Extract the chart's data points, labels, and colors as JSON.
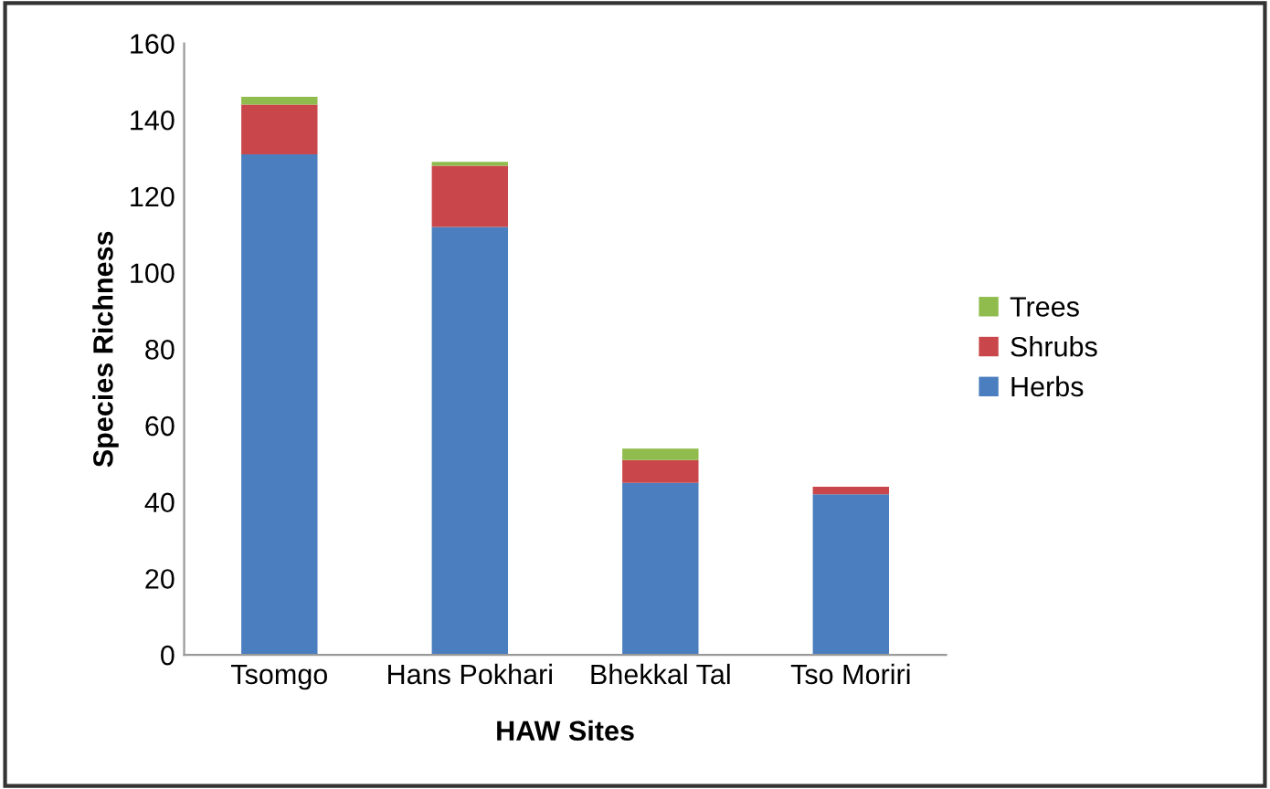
{
  "chart_data": {
    "type": "bar",
    "stacked": true,
    "xlabel": "HAW Sites",
    "ylabel": "Species Richness",
    "categories": [
      "Tsomgo",
      "Hans Pokhari",
      "Bhekkal Tal",
      "Tso Moriri"
    ],
    "series": [
      {
        "name": "Herbs",
        "color": "#4a7ebf",
        "values": [
          131,
          112,
          45,
          42
        ]
      },
      {
        "name": "Shrubs",
        "color": "#c9474a",
        "values": [
          13,
          16,
          6,
          2
        ]
      },
      {
        "name": "Trees",
        "color": "#8fbc4c",
        "values": [
          2,
          1,
          3,
          0
        ]
      }
    ],
    "ylim": [
      0,
      160
    ],
    "yticks": [
      0,
      20,
      40,
      60,
      80,
      100,
      120,
      140,
      160
    ],
    "grid": false,
    "legend": "right"
  }
}
